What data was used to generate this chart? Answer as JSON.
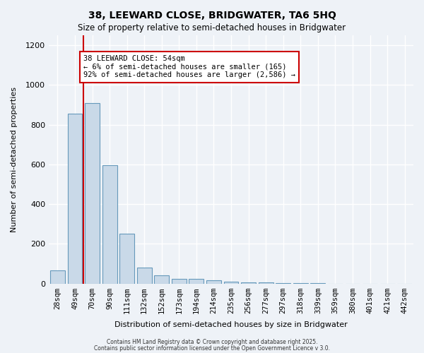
{
  "title1": "38, LEEWARD CLOSE, BRIDGWATER, TA6 5HQ",
  "title2": "Size of property relative to semi-detached houses in Bridgwater",
  "xlabel": "Distribution of semi-detached houses by size in Bridgwater",
  "ylabel": "Number of semi-detached properties",
  "categories": [
    "28sqm",
    "49sqm",
    "70sqm",
    "90sqm",
    "111sqm",
    "132sqm",
    "152sqm",
    "173sqm",
    "194sqm",
    "214sqm",
    "235sqm",
    "256sqm",
    "277sqm",
    "297sqm",
    "318sqm",
    "339sqm",
    "359sqm",
    "380sqm",
    "401sqm",
    "421sqm",
    "442sqm"
  ],
  "values": [
    65,
    855,
    910,
    595,
    250,
    80,
    40,
    22,
    22,
    15,
    10,
    5,
    5,
    2,
    1,
    1,
    0,
    0,
    0,
    0,
    0
  ],
  "bar_color": "#c9d9e8",
  "bar_edge_color": "#6699bb",
  "background_color": "#eef2f7",
  "grid_color": "#ffffff",
  "annotation_box_color": "#ffffff",
  "annotation_border_color": "#cc0000",
  "marker_line_color": "#cc0000",
  "ylim": [
    0,
    1250
  ],
  "yticks": [
    0,
    200,
    400,
    600,
    800,
    1000,
    1200
  ],
  "property_size": 54,
  "property_label": "38 LEEWARD CLOSE: 54sqm",
  "pct_smaller": "6%",
  "pct_larger": "92%",
  "n_smaller": "165",
  "n_larger": "2,586",
  "marker_bar_index": 1,
  "footer1": "Contains HM Land Registry data © Crown copyright and database right 2025.",
  "footer2": "Contains public sector information licensed under the Open Government Licence v 3.0."
}
